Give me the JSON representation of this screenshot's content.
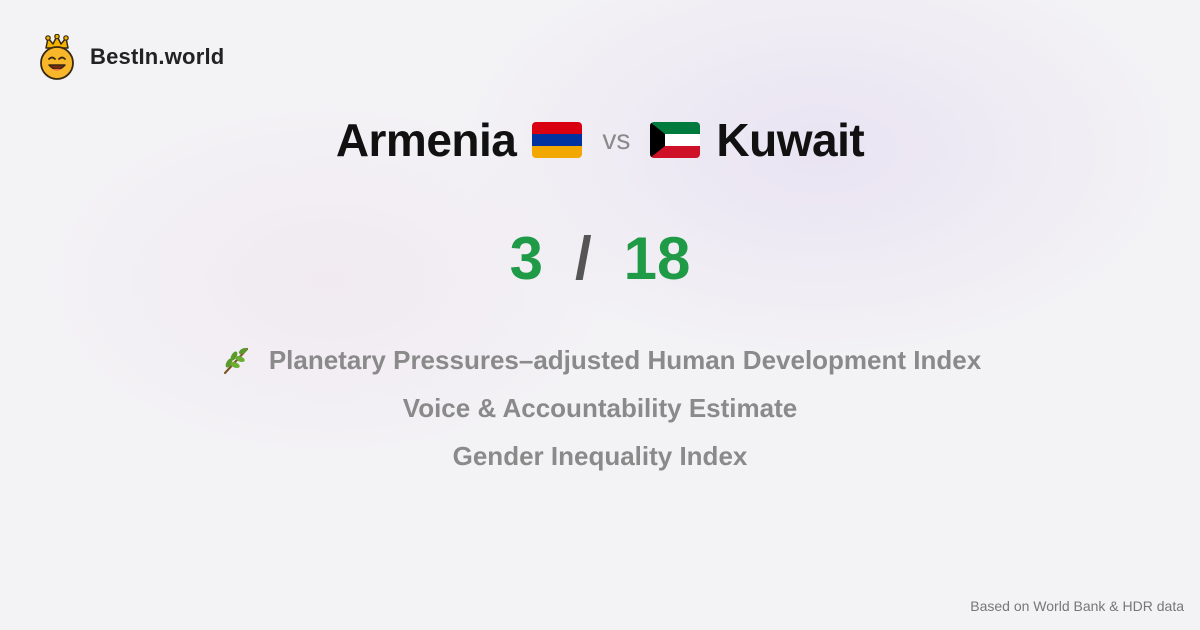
{
  "brand": {
    "name": "BestIn.world",
    "logo_icon": "crown-smiley-icon"
  },
  "comparison": {
    "left": {
      "name": "Armenia",
      "flag_icon": "armenia-flag-icon"
    },
    "vs_label": "vs",
    "right": {
      "name": "Kuwait",
      "flag_icon": "kuwait-flag-icon"
    }
  },
  "score": {
    "left": "3",
    "separator": "/",
    "right": "18"
  },
  "metrics": [
    {
      "icon": "leaf-branch-icon",
      "label": "Planetary Pressures–adjusted Human Development Index"
    },
    {
      "label": "Voice & Accountability Estimate"
    },
    {
      "label": "Gender Inequality Index"
    }
  ],
  "footer": {
    "source": "Based on World Bank & HDR data"
  },
  "colors": {
    "score": "#1f9a47",
    "background": "#f3f2f5",
    "muted_text": "#8a8a8a"
  }
}
